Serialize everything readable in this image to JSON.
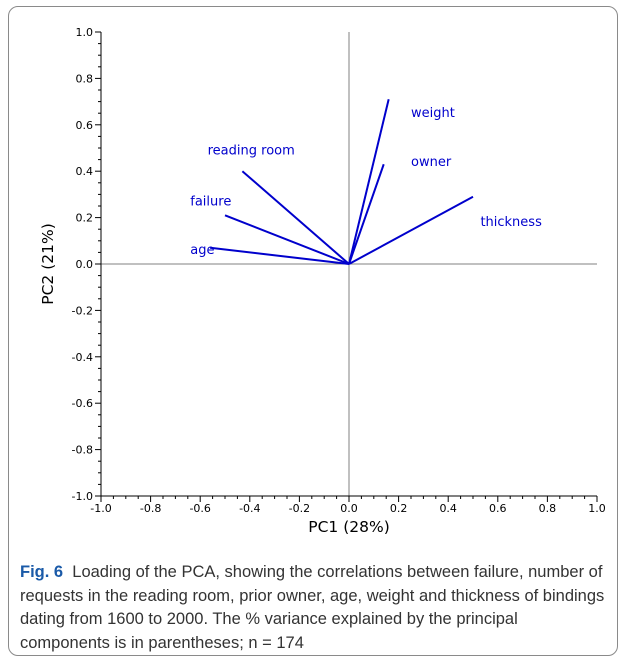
{
  "figure": {
    "label": "Fig. 6",
    "caption": "Loading of the PCA, showing the correlations between failure, number of requests in the reading room, prior owner, age, weight and thickness of bindings dating from 1600 to 2000. The  % variance explained by the principal components is in parentheses; n = 174"
  },
  "chart_data": {
    "type": "biplot-loadings",
    "title": "",
    "xlabel": "PC1 (28%)",
    "ylabel": "PC2 (21%)",
    "xlim": [
      -1.0,
      1.0
    ],
    "ylim": [
      -1.0,
      1.0
    ],
    "xticks": [
      -1.0,
      -0.8,
      -0.6,
      -0.4,
      -0.2,
      0.0,
      0.2,
      0.4,
      0.6,
      0.8,
      1.0
    ],
    "yticks": [
      -1.0,
      -0.8,
      -0.6,
      -0.4,
      -0.2,
      0.0,
      0.2,
      0.4,
      0.6,
      0.8,
      1.0
    ],
    "grid": false,
    "zero_lines": true,
    "vector_color": "#0000cc",
    "axis_color": "#000000",
    "zero_line_color": "#808080",
    "vectors": [
      {
        "name": "weight",
        "x": 0.16,
        "y": 0.71
      },
      {
        "name": "owner",
        "x": 0.14,
        "y": 0.43
      },
      {
        "name": "thickness",
        "x": 0.5,
        "y": 0.29
      },
      {
        "name": "reading room",
        "x": -0.43,
        "y": 0.4
      },
      {
        "name": "failure",
        "x": -0.5,
        "y": 0.21
      },
      {
        "name": "age",
        "x": -0.56,
        "y": 0.07
      }
    ]
  }
}
